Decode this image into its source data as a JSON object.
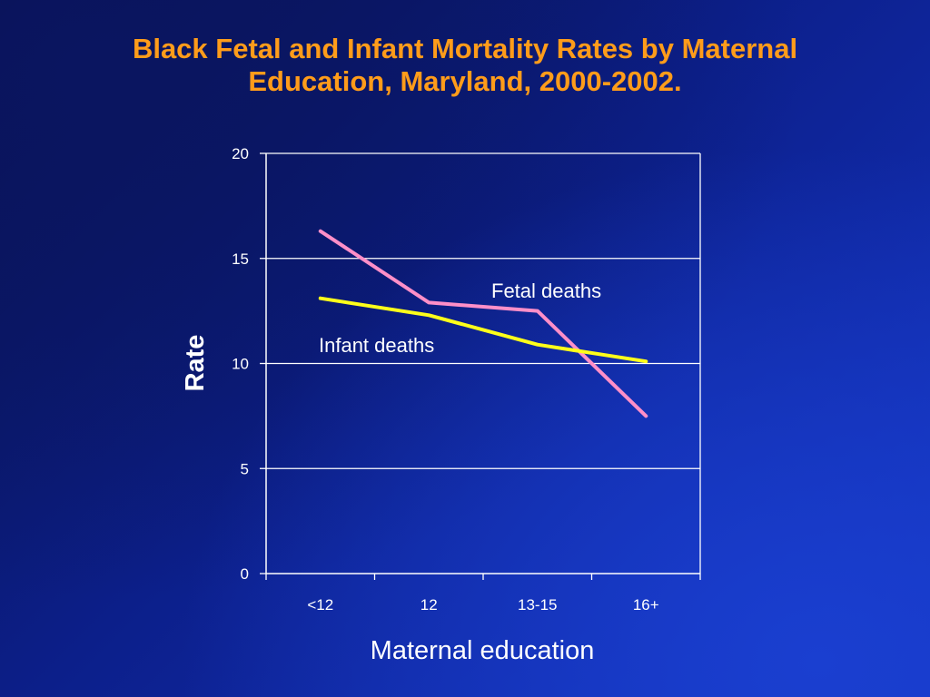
{
  "chart_data": {
    "type": "line",
    "title_lines": [
      "Black Fetal and Infant Mortality Rates by Maternal",
      "Education, Maryland, 2000-2002."
    ],
    "xlabel": "Maternal education",
    "ylabel": "Rate",
    "categories": [
      "<12",
      "12",
      "13-15",
      "16+"
    ],
    "ylim": [
      0,
      20
    ],
    "yticks": [
      0,
      5,
      10,
      15,
      20
    ],
    "grid": true,
    "series": [
      {
        "name": "Fetal deaths",
        "color": "#ff8fc8",
        "values": [
          16.3,
          12.9,
          12.5,
          7.5
        ]
      },
      {
        "name": "Infant deaths",
        "color": "#ffff1a",
        "values": [
          13.1,
          12.3,
          10.9,
          10.1
        ]
      }
    ]
  },
  "colors": {
    "title": "#ff9c1a",
    "text": "#ffffff",
    "grid": "#ffffff"
  }
}
